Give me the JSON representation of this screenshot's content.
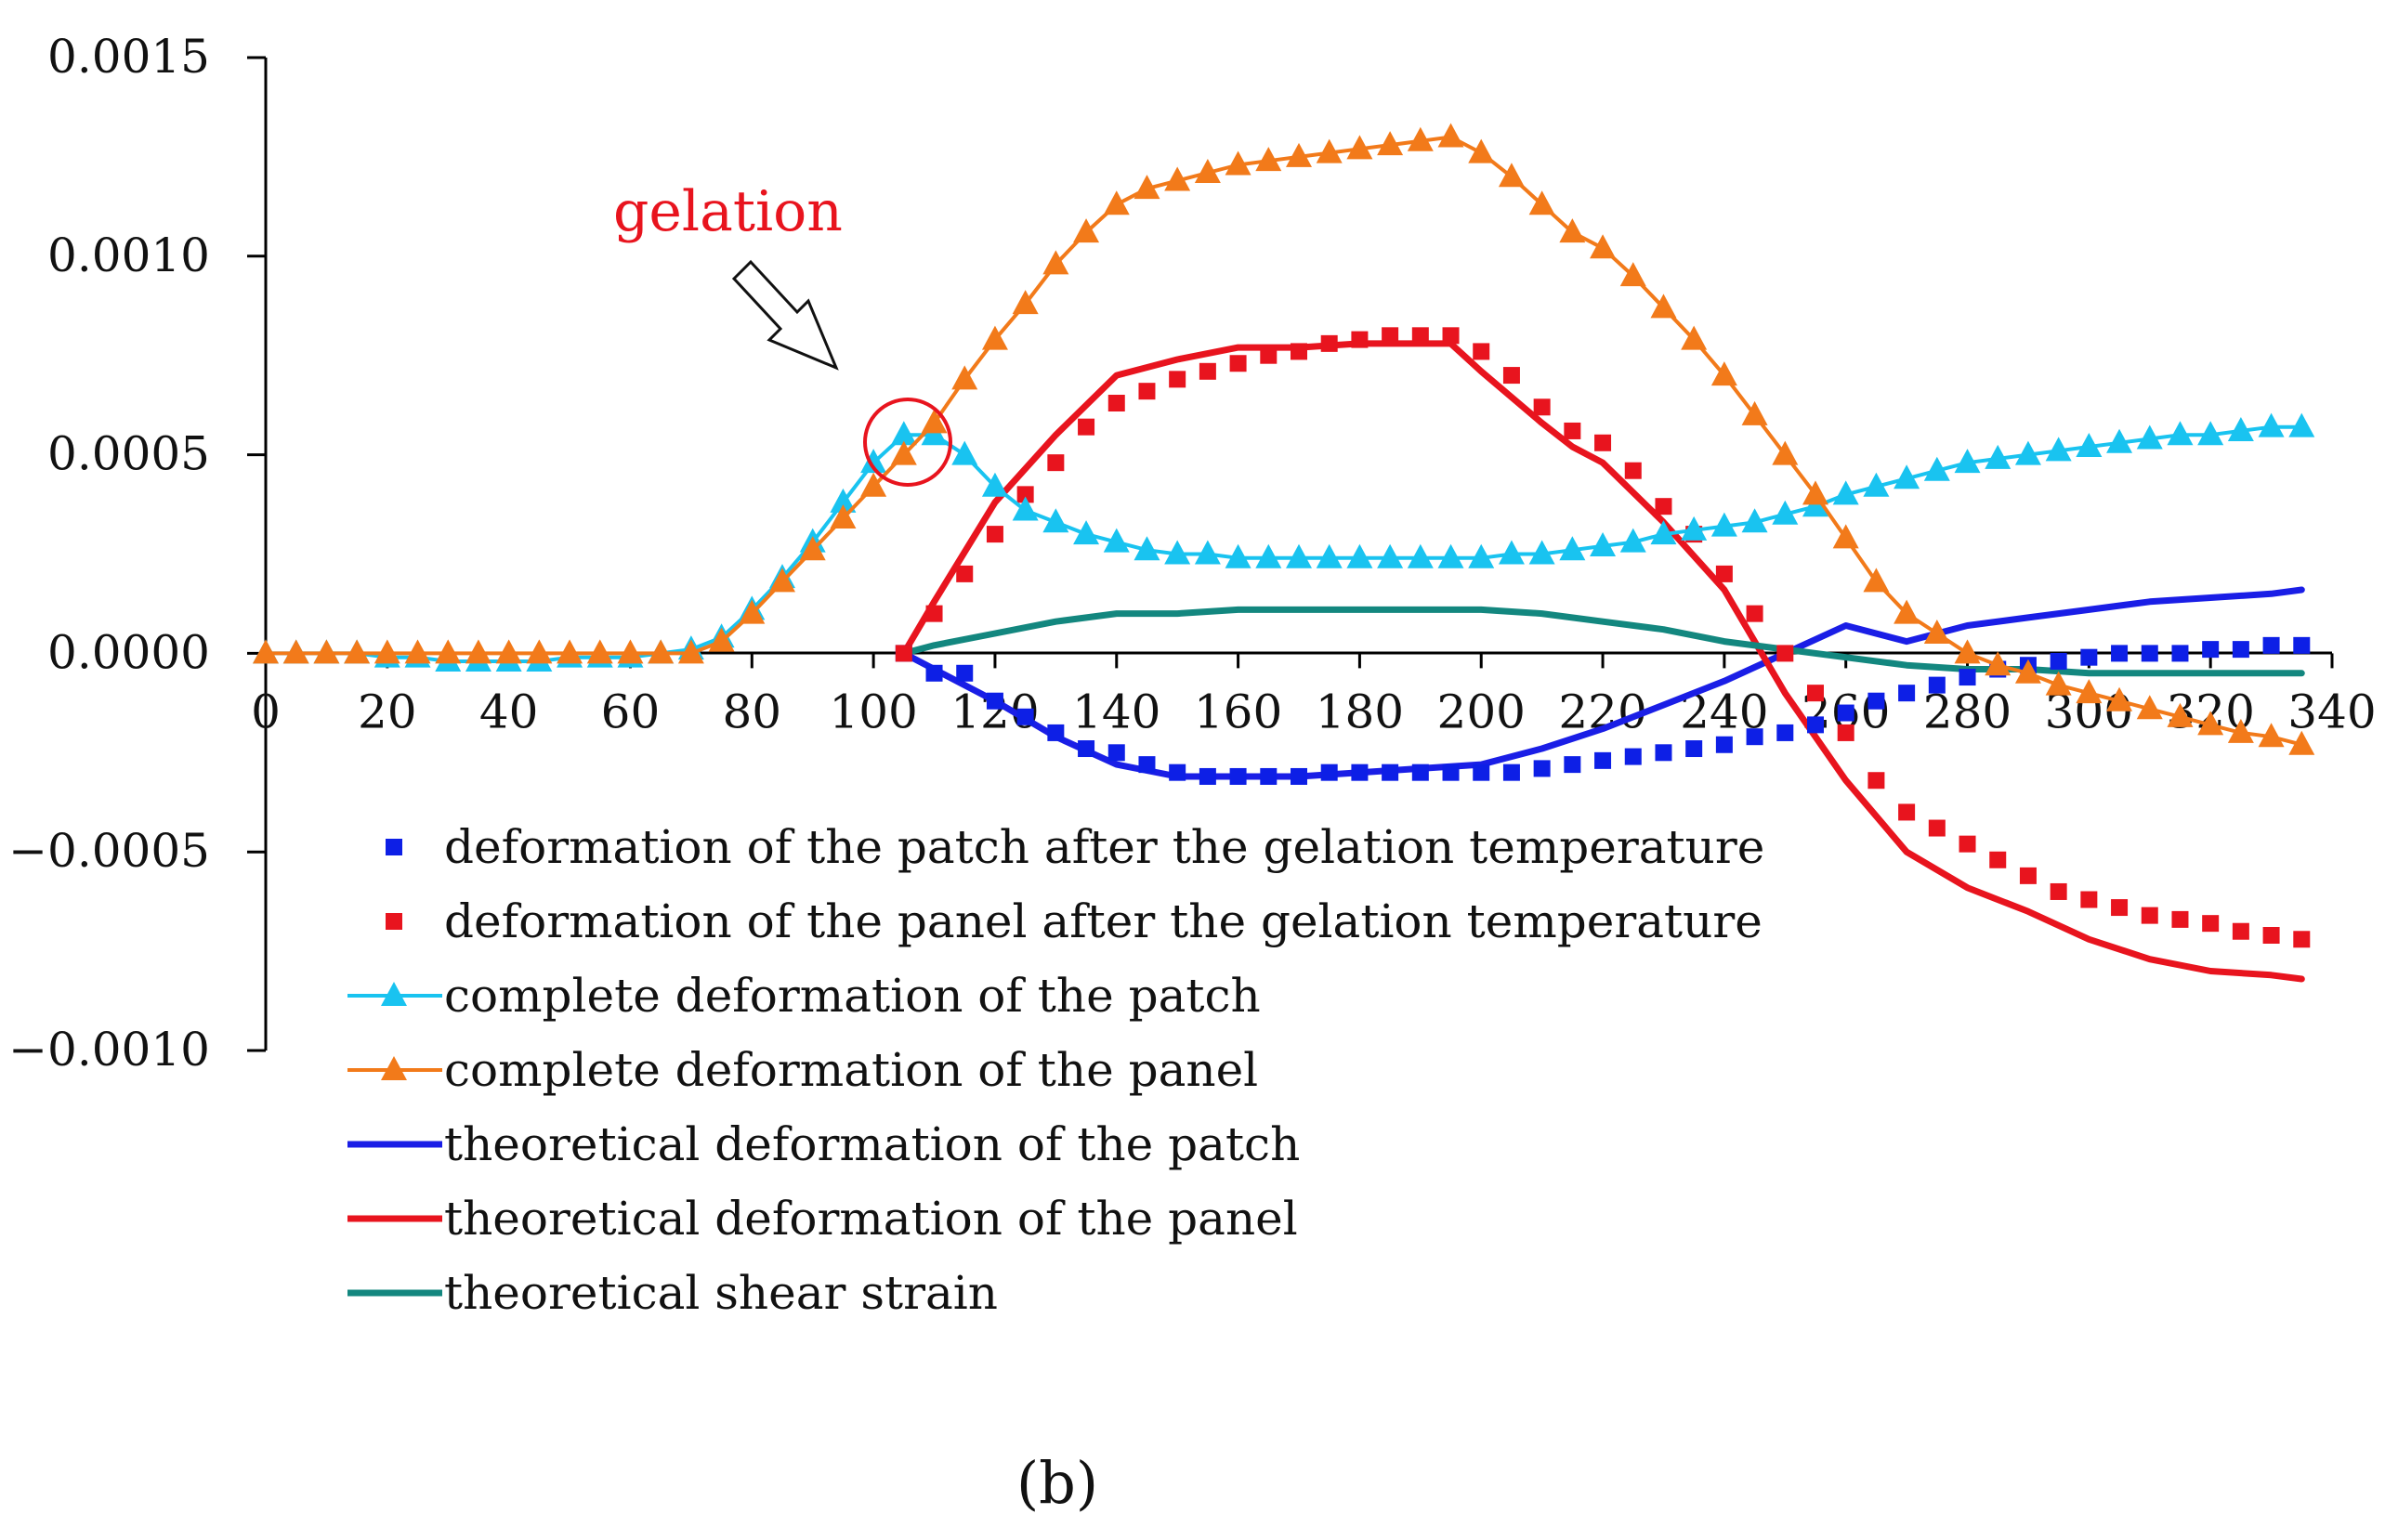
{
  "chart_data": {
    "type": "line",
    "title": "",
    "xlabel": "",
    "ylabel": "",
    "xlim": [
      0,
      340
    ],
    "ylim": [
      -0.001,
      0.0015
    ],
    "x_ticks": [
      "0",
      "20",
      "40",
      "60",
      "80",
      "100",
      "120",
      "140",
      "160",
      "180",
      "200",
      "220",
      "240",
      "260",
      "280",
      "300",
      "320",
      "340"
    ],
    "y_ticks": [
      "0.0015",
      "0.0010",
      "0.0005",
      "0.0000",
      "−0.0005",
      "−0.0010"
    ],
    "annotation": "gelation",
    "panel_label": "(b)",
    "legend_position": "bottom-left",
    "series": [
      {
        "name": "deformation of the patch after the gelation temperature",
        "style": "square-markers",
        "color": "#0d1fe6",
        "x": [
          105,
          110,
          115,
          120,
          125,
          130,
          135,
          140,
          145,
          150,
          155,
          160,
          165,
          170,
          175,
          180,
          185,
          190,
          195,
          200,
          205,
          210,
          215,
          220,
          225,
          230,
          235,
          240,
          245,
          250,
          255,
          260,
          265,
          270,
          275,
          280,
          285,
          290,
          295,
          300,
          305,
          310,
          315,
          320,
          325,
          330,
          335
        ],
        "y": [
          0.0,
          -5e-05,
          -5e-05,
          -0.00012,
          -0.00016,
          -0.0002,
          -0.00024,
          -0.00025,
          -0.00028,
          -0.0003,
          -0.00031,
          -0.00031,
          -0.00031,
          -0.00031,
          -0.0003,
          -0.0003,
          -0.0003,
          -0.0003,
          -0.0003,
          -0.0003,
          -0.0003,
          -0.00029,
          -0.00028,
          -0.00027,
          -0.00026,
          -0.00025,
          -0.00024,
          -0.00023,
          -0.00021,
          -0.0002,
          -0.00018,
          -0.00015,
          -0.00012,
          -0.0001,
          -8e-05,
          -6e-05,
          -4e-05,
          -3e-05,
          -2e-05,
          -1e-05,
          0.0,
          0.0,
          0.0,
          1e-05,
          1e-05,
          2e-05,
          2e-05
        ]
      },
      {
        "name": "deformation of the panel after the gelation temperature",
        "style": "square-markers",
        "color": "#e8141e",
        "x": [
          105,
          110,
          115,
          120,
          125,
          130,
          135,
          140,
          145,
          150,
          155,
          160,
          165,
          170,
          175,
          180,
          185,
          190,
          195,
          200,
          205,
          210,
          215,
          220,
          225,
          230,
          235,
          240,
          245,
          250,
          255,
          260,
          265,
          270,
          275,
          280,
          285,
          290,
          295,
          300,
          305,
          310,
          315,
          320,
          325,
          330,
          335
        ],
        "y": [
          0.0,
          0.0001,
          0.0002,
          0.0003,
          0.0004,
          0.00048,
          0.00057,
          0.00063,
          0.00066,
          0.00069,
          0.00071,
          0.00073,
          0.00075,
          0.00076,
          0.00078,
          0.00079,
          0.0008,
          0.0008,
          0.0008,
          0.00076,
          0.0007,
          0.00062,
          0.00056,
          0.00053,
          0.00046,
          0.00037,
          0.0003,
          0.0002,
          0.0001,
          0.0,
          -0.0001,
          -0.0002,
          -0.00032,
          -0.0004,
          -0.00044,
          -0.00048,
          -0.00052,
          -0.00056,
          -0.0006,
          -0.00062,
          -0.00064,
          -0.00066,
          -0.00067,
          -0.00068,
          -0.0007,
          -0.00071,
          -0.00072
        ]
      },
      {
        "name": "complete deformation of the patch",
        "style": "line-triangle-markers",
        "color": "#19c3f0",
        "x": [
          0,
          5,
          10,
          15,
          20,
          25,
          30,
          35,
          40,
          45,
          50,
          55,
          60,
          65,
          70,
          75,
          80,
          85,
          90,
          95,
          100,
          105,
          110,
          115,
          120,
          125,
          130,
          135,
          140,
          145,
          150,
          155,
          160,
          165,
          170,
          175,
          180,
          185,
          190,
          195,
          200,
          205,
          210,
          215,
          220,
          225,
          230,
          235,
          240,
          245,
          250,
          255,
          260,
          265,
          270,
          275,
          280,
          285,
          290,
          295,
          300,
          305,
          310,
          315,
          320,
          325,
          330,
          335
        ],
        "y": [
          0.0,
          0.0,
          0.0,
          0.0,
          -1e-05,
          -1e-05,
          -2e-05,
          -2e-05,
          -2e-05,
          -2e-05,
          -1e-05,
          -1e-05,
          -1e-05,
          0.0,
          1e-05,
          4e-05,
          0.00011,
          0.00019,
          0.00028,
          0.00038,
          0.00048,
          0.00055,
          0.00055,
          0.0005,
          0.00042,
          0.00036,
          0.00033,
          0.0003,
          0.00028,
          0.00026,
          0.00025,
          0.00025,
          0.00024,
          0.00024,
          0.00024,
          0.00024,
          0.00024,
          0.00024,
          0.00024,
          0.00024,
          0.00024,
          0.00025,
          0.00025,
          0.00026,
          0.00027,
          0.00028,
          0.0003,
          0.00031,
          0.00032,
          0.00033,
          0.00035,
          0.00037,
          0.0004,
          0.00042,
          0.00044,
          0.00046,
          0.00048,
          0.00049,
          0.0005,
          0.00051,
          0.00052,
          0.00053,
          0.00054,
          0.00055,
          0.00055,
          0.00056,
          0.00057,
          0.00057
        ]
      },
      {
        "name": "complete deformation of the panel",
        "style": "line-triangle-markers",
        "color": "#f27a1a",
        "x": [
          0,
          5,
          10,
          15,
          20,
          25,
          30,
          35,
          40,
          45,
          50,
          55,
          60,
          65,
          70,
          75,
          80,
          85,
          90,
          95,
          100,
          105,
          110,
          115,
          120,
          125,
          130,
          135,
          140,
          145,
          150,
          155,
          160,
          165,
          170,
          175,
          180,
          185,
          190,
          195,
          200,
          205,
          210,
          215,
          220,
          225,
          230,
          235,
          240,
          245,
          250,
          255,
          260,
          265,
          270,
          275,
          280,
          285,
          290,
          295,
          300,
          305,
          310,
          315,
          320,
          325,
          330,
          335
        ],
        "y": [
          0.0,
          0.0,
          0.0,
          0.0,
          0.0,
          0.0,
          0.0,
          0.0,
          0.0,
          0.0,
          0.0,
          0.0,
          0.0,
          0.0,
          0.0,
          3e-05,
          0.0001,
          0.00018,
          0.00026,
          0.00034,
          0.00042,
          0.0005,
          0.00058,
          0.00069,
          0.00079,
          0.00088,
          0.00098,
          0.00106,
          0.00113,
          0.00117,
          0.00119,
          0.00121,
          0.00123,
          0.00124,
          0.00125,
          0.00126,
          0.00127,
          0.00128,
          0.00129,
          0.0013,
          0.00126,
          0.0012,
          0.00113,
          0.00106,
          0.00102,
          0.00095,
          0.00087,
          0.00079,
          0.0007,
          0.0006,
          0.0005,
          0.0004,
          0.00029,
          0.00018,
          0.0001,
          5e-05,
          0.0,
          -3e-05,
          -5e-05,
          -8e-05,
          -0.0001,
          -0.00012,
          -0.00014,
          -0.00016,
          -0.00018,
          -0.0002,
          -0.00021,
          -0.00023
        ]
      },
      {
        "name": "theoretical deformation of the patch",
        "style": "line",
        "color": "#1a1ee6",
        "x": [
          105,
          110,
          120,
          130,
          140,
          150,
          160,
          170,
          180,
          190,
          200,
          210,
          220,
          230,
          240,
          250,
          260,
          270,
          280,
          290,
          300,
          310,
          320,
          330,
          335
        ],
        "y": [
          0.0,
          -4e-05,
          -0.00012,
          -0.00021,
          -0.00028,
          -0.00031,
          -0.00031,
          -0.00031,
          -0.0003,
          -0.00029,
          -0.00028,
          -0.00024,
          -0.00019,
          -0.00013,
          -7e-05,
          0.0,
          7e-05,
          3e-05,
          7e-05,
          9e-05,
          0.00011,
          0.00013,
          0.00014,
          0.00015,
          0.00016
        ]
      },
      {
        "name": "theoretical deformation of the panel",
        "style": "line",
        "color": "#e8141e",
        "x": [
          105,
          110,
          120,
          130,
          140,
          150,
          160,
          170,
          180,
          190,
          195,
          200,
          210,
          215,
          220,
          230,
          240,
          245,
          250,
          260,
          270,
          280,
          290,
          300,
          310,
          320,
          330,
          335
        ],
        "y": [
          0.0,
          0.00013,
          0.00038,
          0.00055,
          0.0007,
          0.00074,
          0.00077,
          0.00077,
          0.00078,
          0.00078,
          0.00078,
          0.00071,
          0.00058,
          0.00052,
          0.00048,
          0.00033,
          0.00016,
          3e-05,
          -0.0001,
          -0.00032,
          -0.0005,
          -0.00059,
          -0.00065,
          -0.00072,
          -0.00077,
          -0.0008,
          -0.00081,
          -0.00082
        ]
      },
      {
        "name": "theoretical shear strain",
        "style": "line",
        "color": "#13877f",
        "x": [
          105,
          110,
          120,
          130,
          140,
          150,
          160,
          170,
          180,
          190,
          200,
          210,
          220,
          230,
          240,
          250,
          260,
          270,
          280,
          290,
          300,
          310,
          320,
          330,
          335
        ],
        "y": [
          0.0,
          2e-05,
          5e-05,
          8e-05,
          0.0001,
          0.0001,
          0.00011,
          0.00011,
          0.00011,
          0.00011,
          0.00011,
          0.0001,
          8e-05,
          6e-05,
          3e-05,
          1e-05,
          -1e-05,
          -3e-05,
          -4e-05,
          -4e-05,
          -5e-05,
          -5e-05,
          -5e-05,
          -5e-05,
          -5e-05
        ]
      }
    ]
  }
}
